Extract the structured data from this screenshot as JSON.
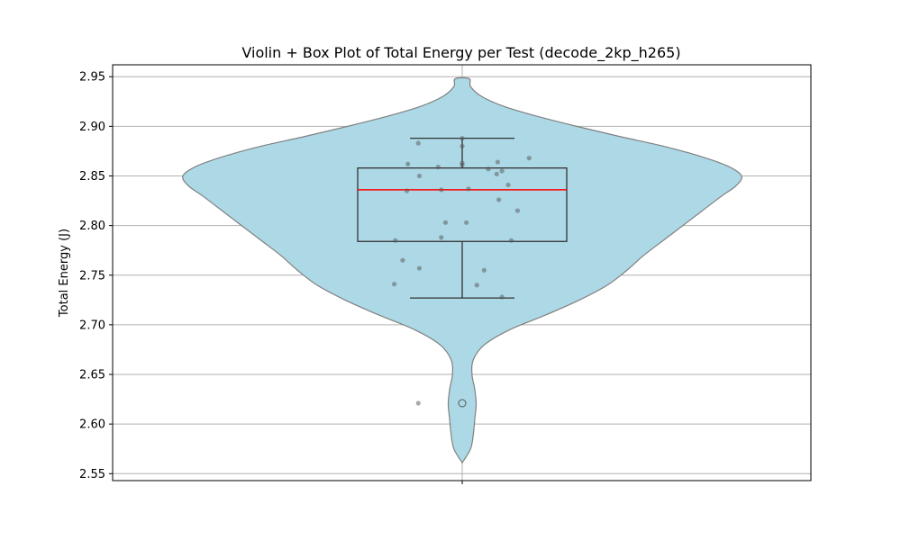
{
  "chart_data": {
    "type": "violin",
    "title": "Violin + Box Plot of Total Energy per Test (decode_2kp_h265)",
    "xlabel": "",
    "ylabel": "Total Energy (J)",
    "ylim": [
      2.543,
      2.962
    ],
    "yticks": [
      2.55,
      2.6,
      2.65,
      2.7,
      2.75,
      2.8,
      2.85,
      2.9,
      2.95
    ],
    "ytick_labels": [
      "2.55",
      "2.60",
      "2.65",
      "2.70",
      "2.75",
      "2.80",
      "2.85",
      "2.90",
      "2.95"
    ],
    "grid": true,
    "colors": {
      "violin_fill": "#add8e6",
      "violin_edge": "#808080",
      "box_edge": "#333333",
      "median": "#ff0000",
      "points": "#555555",
      "grid": "#b0b0b0"
    },
    "violin_profile": [
      [
        2.561,
        0.0
      ],
      [
        2.575,
        0.03
      ],
      [
        2.59,
        0.04
      ],
      [
        2.605,
        0.045
      ],
      [
        2.62,
        0.05
      ],
      [
        2.635,
        0.045
      ],
      [
        2.65,
        0.035
      ],
      [
        2.665,
        0.04
      ],
      [
        2.68,
        0.08
      ],
      [
        2.695,
        0.17
      ],
      [
        2.71,
        0.3
      ],
      [
        2.725,
        0.42
      ],
      [
        2.74,
        0.52
      ],
      [
        2.755,
        0.59
      ],
      [
        2.77,
        0.65
      ],
      [
        2.785,
        0.72
      ],
      [
        2.8,
        0.79
      ],
      [
        2.815,
        0.86
      ],
      [
        2.83,
        0.93
      ],
      [
        2.84,
        0.98
      ],
      [
        2.85,
        1.0
      ],
      [
        2.86,
        0.95
      ],
      [
        2.87,
        0.85
      ],
      [
        2.88,
        0.72
      ],
      [
        2.89,
        0.56
      ],
      [
        2.9,
        0.41
      ],
      [
        2.91,
        0.27
      ],
      [
        2.92,
        0.15
      ],
      [
        2.93,
        0.07
      ],
      [
        2.94,
        0.03
      ],
      [
        2.948,
        0.025
      ]
    ],
    "box": {
      "q1": 2.784,
      "median": 2.836,
      "q3": 2.858,
      "whisker_low": 2.727,
      "whisker_high": 2.888,
      "outliers": [
        2.621
      ]
    },
    "points": [
      {
        "jitter": -0.42,
        "y": 2.883
      },
      {
        "jitter": -0.52,
        "y": 2.862
      },
      {
        "jitter": -0.23,
        "y": 2.859
      },
      {
        "jitter": 0.0,
        "y": 2.888
      },
      {
        "jitter": 0.0,
        "y": 2.88
      },
      {
        "jitter": 0.0,
        "y": 2.863
      },
      {
        "jitter": 0.0,
        "y": 2.861
      },
      {
        "jitter": 0.34,
        "y": 2.864
      },
      {
        "jitter": 0.64,
        "y": 2.868
      },
      {
        "jitter": 0.25,
        "y": 2.857
      },
      {
        "jitter": 0.38,
        "y": 2.855
      },
      {
        "jitter": 0.33,
        "y": 2.852
      },
      {
        "jitter": -0.41,
        "y": 2.85
      },
      {
        "jitter": 0.06,
        "y": 2.837
      },
      {
        "jitter": -0.2,
        "y": 2.836
      },
      {
        "jitter": -0.53,
        "y": 2.835
      },
      {
        "jitter": 0.44,
        "y": 2.841
      },
      {
        "jitter": 0.35,
        "y": 2.826
      },
      {
        "jitter": 0.53,
        "y": 2.815
      },
      {
        "jitter": -0.16,
        "y": 2.803
      },
      {
        "jitter": 0.04,
        "y": 2.803
      },
      {
        "jitter": -0.2,
        "y": 2.788
      },
      {
        "jitter": -0.64,
        "y": 2.785
      },
      {
        "jitter": 0.47,
        "y": 2.785
      },
      {
        "jitter": -0.57,
        "y": 2.765
      },
      {
        "jitter": -0.41,
        "y": 2.757
      },
      {
        "jitter": 0.21,
        "y": 2.755
      },
      {
        "jitter": -0.65,
        "y": 2.741
      },
      {
        "jitter": 0.14,
        "y": 2.74
      },
      {
        "jitter": 0.38,
        "y": 2.728
      },
      {
        "jitter": -0.42,
        "y": 2.621
      }
    ]
  }
}
